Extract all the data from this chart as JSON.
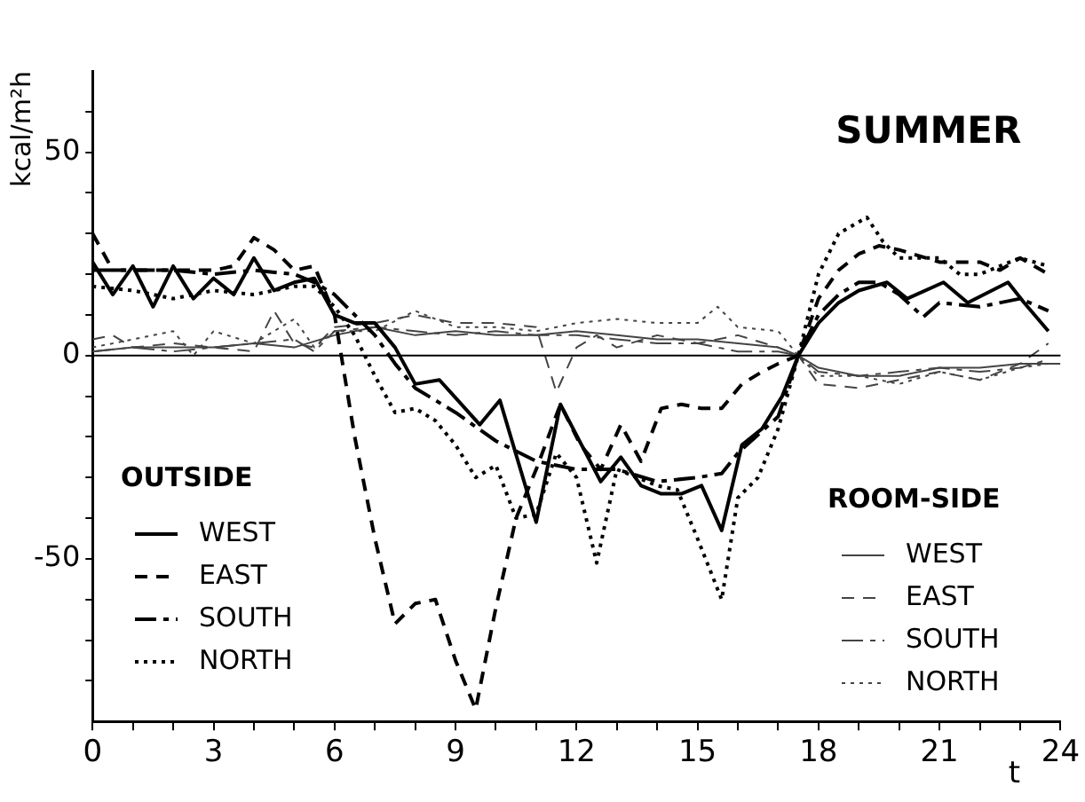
{
  "chart_data": {
    "type": "line",
    "title": "SUMMER",
    "xlabel": "t",
    "ylabel": "kcal/m²h",
    "xlim": [
      0,
      24
    ],
    "ylim": [
      -90,
      70
    ],
    "xticks": [
      0,
      {
        "value": 1,
        "label": null
      },
      {
        "value": 2,
        "label": null
      },
      3,
      {
        "value": 4,
        "label": null
      },
      {
        "value": 5,
        "label": null
      },
      6,
      {
        "value": 7,
        "label": null
      },
      {
        "value": 8,
        "label": null
      },
      9,
      {
        "value": 10,
        "label": null
      },
      {
        "value": 11,
        "label": null
      },
      12,
      {
        "value": 13,
        "label": null
      },
      {
        "value": 14,
        "label": null
      },
      15,
      {
        "value": 16,
        "label": null
      },
      {
        "value": 17,
        "label": null
      },
      18,
      {
        "value": 19,
        "label": null
      },
      {
        "value": 20,
        "label": null
      },
      21,
      {
        "value": 22,
        "label": null
      },
      {
        "value": 23,
        "label": null
      },
      24
    ],
    "yticks": [
      {
        "value": -80,
        "label": null
      },
      {
        "value": -70,
        "label": null
      },
      {
        "value": -60,
        "label": null
      },
      -50,
      {
        "value": -40,
        "label": null
      },
      {
        "value": -30,
        "label": null
      },
      {
        "value": -20,
        "label": null
      },
      {
        "value": -10,
        "label": null
      },
      0,
      {
        "value": 10,
        "label": null
      },
      {
        "value": 20,
        "label": null
      },
      {
        "value": 30,
        "label": null
      },
      {
        "value": 40,
        "label": null
      },
      50,
      {
        "value": 60,
        "label": null
      }
    ],
    "grid": false,
    "legend": "bottom",
    "marker": "none",
    "ref_lines": [
      {
        "axis": "y",
        "value": 0,
        "color": "#000000"
      }
    ],
    "annotations": [
      "OUTSIDE",
      "ROOM-SIDE"
    ],
    "series": [
      {
        "name": "WEST",
        "color": "#000000",
        "line_style": "solid",
        "x": [
          0,
          0.5,
          1,
          1.5,
          2,
          2.5,
          3,
          3.5,
          4,
          4.5,
          5,
          5.5,
          6,
          6.5,
          7,
          7.5,
          8,
          8.6,
          9.6,
          10.1,
          11,
          11.6,
          12.6,
          13.1,
          13.6,
          14.1,
          14.6,
          15.1,
          15.6,
          16.1,
          16.6,
          17.1,
          17.5,
          18,
          18.5,
          19,
          19.7,
          20.2,
          21.1,
          21.7,
          22.7,
          23.1,
          23.7
        ],
        "values": [
          23,
          15,
          22,
          12,
          22,
          14,
          19,
          15,
          24,
          16,
          18,
          19,
          10,
          8,
          8,
          2,
          -7,
          -6,
          -17,
          -11,
          -41,
          -12,
          -31,
          -25,
          -32,
          -34,
          -34,
          -32,
          -43,
          -22,
          -18,
          -10,
          0,
          8,
          13,
          16,
          18,
          14,
          18,
          13,
          18,
          13,
          6
        ]
      },
      {
        "name": "EAST",
        "color": "#000000",
        "line_style": "dashed",
        "x": [
          0,
          0.5,
          1,
          2,
          3,
          3.5,
          4,
          4.5,
          5,
          5.5,
          6,
          6.5,
          7,
          7.5,
          8,
          8.5,
          9,
          9.5,
          10,
          10.5,
          11,
          11.6,
          12.1,
          12.6,
          13.1,
          13.6,
          14.1,
          14.6,
          15.1,
          15.6,
          16.1,
          16.6,
          17,
          17.5,
          18,
          18.5,
          19,
          19.5,
          20,
          21,
          22,
          22.5,
          23,
          23.7
        ],
        "values": [
          30,
          21,
          21,
          21,
          21,
          22,
          29,
          26,
          21,
          22,
          10,
          -20,
          -45,
          -66,
          -61,
          -60,
          -75,
          -87,
          -62,
          -40,
          -28,
          -12,
          -22,
          -28,
          -17,
          -26,
          -13,
          -12,
          -13,
          -13,
          -7,
          -4,
          -2,
          0,
          14,
          21,
          25,
          27,
          26,
          23,
          23,
          21,
          24,
          20
        ]
      },
      {
        "name": "SOUTH",
        "color": "#000000",
        "line_style": "dashdot",
        "x": [
          0,
          1,
          2,
          3,
          4,
          5,
          5.5,
          6,
          7,
          7.5,
          8,
          9,
          10,
          11,
          11.5,
          12,
          13,
          14,
          15,
          15.6,
          16,
          17,
          17.5,
          18,
          18.5,
          19,
          19.5,
          20,
          20.6,
          21,
          22,
          23,
          23.7
        ],
        "values": [
          21,
          21,
          21,
          20,
          21,
          20,
          18,
          15,
          5,
          -2,
          -8,
          -14,
          -21,
          -26,
          -27,
          -28,
          -28,
          -31,
          -30,
          -29,
          -24,
          -15,
          0,
          10,
          15,
          18,
          18,
          15,
          9.5,
          13,
          12,
          14,
          11
        ]
      },
      {
        "name": "NORTH",
        "color": "#000000",
        "line_style": "dotted",
        "x": [
          0,
          1,
          2,
          3,
          4,
          5,
          5.5,
          6,
          6.5,
          7,
          7.5,
          8,
          8.5,
          9,
          9.5,
          10,
          10.5,
          11,
          11.5,
          12,
          12.5,
          13,
          13.5,
          14,
          14.5,
          15,
          15.6,
          16,
          16.5,
          17,
          17.5,
          18,
          18.5,
          19.2,
          19.6,
          20,
          21,
          21.5,
          22,
          23,
          23.7
        ],
        "values": [
          17,
          16,
          14,
          16,
          15,
          17,
          17,
          12,
          5,
          -5,
          -14,
          -13,
          -16,
          -22,
          -30,
          -27,
          -40,
          -39,
          -24,
          -30,
          -51,
          -28,
          -30,
          -32,
          -33,
          -45,
          -60,
          -35,
          -30,
          -18,
          0,
          20,
          30,
          34,
          28,
          24,
          24,
          20,
          20,
          24,
          22
        ]
      },
      {
        "name": "WEST",
        "color": "#444444",
        "line_style": "solid",
        "x": [
          0,
          1,
          2,
          3,
          4,
          5,
          6,
          7,
          8,
          9,
          10,
          11,
          12,
          13,
          14,
          15,
          16,
          17,
          17.5,
          18,
          19,
          20,
          21,
          22,
          23,
          24
        ],
        "values": [
          1,
          2,
          2,
          2,
          3,
          2,
          5,
          7,
          5,
          6,
          5,
          5,
          6,
          5,
          4,
          4,
          3,
          2,
          0,
          -3,
          -5,
          -5,
          -3,
          -3,
          -2,
          -2
        ]
      },
      {
        "name": "EAST",
        "color": "#444444",
        "line_style": "dashed",
        "x": [
          0,
          0.5,
          1,
          2,
          3,
          4,
          4.5,
          5,
          5.5,
          6,
          7,
          8,
          9,
          10,
          11,
          11.5,
          12,
          12.5,
          13,
          14,
          15,
          16,
          17,
          17.5,
          18,
          19,
          20,
          21,
          22,
          23,
          23.7
        ],
        "values": [
          4,
          5,
          2,
          3,
          2,
          1,
          11,
          3,
          2,
          7,
          8,
          10,
          8,
          8,
          7,
          -9,
          2,
          5,
          2,
          5,
          3,
          5,
          2,
          0,
          -7,
          -8,
          -6,
          -4,
          -6,
          -2,
          3
        ]
      },
      {
        "name": "SOUTH",
        "color": "#444444",
        "line_style": "dashdot",
        "x": [
          0,
          1,
          2,
          3,
          4,
          5,
          5.5,
          6,
          7,
          8,
          9,
          10,
          11,
          12,
          13,
          14,
          15,
          16,
          17,
          17.5,
          18,
          19,
          20,
          21,
          22,
          23,
          23.7
        ],
        "values": [
          1,
          2,
          1,
          2,
          3,
          4,
          1,
          6,
          7,
          6,
          5,
          6,
          5,
          5,
          4,
          3,
          3,
          1,
          1,
          0,
          -4,
          -5,
          -4,
          -3,
          -4,
          -3,
          -1
        ]
      },
      {
        "name": "NORTH",
        "color": "#444444",
        "line_style": "dotted",
        "x": [
          0,
          1,
          2,
          2.5,
          3,
          4,
          5,
          5.5,
          6,
          7,
          8,
          9,
          10,
          11,
          12,
          13,
          14,
          15,
          15.5,
          16,
          17,
          17.5,
          18,
          19,
          20,
          21,
          22,
          23,
          23.7
        ],
        "values": [
          2,
          4,
          6,
          0,
          6,
          3,
          9,
          2,
          6,
          6,
          11,
          7,
          7,
          6,
          8,
          9,
          8,
          8,
          12,
          7,
          6,
          0,
          -5,
          -5,
          -7,
          -4,
          -6,
          -3,
          -2
        ]
      }
    ]
  }
}
